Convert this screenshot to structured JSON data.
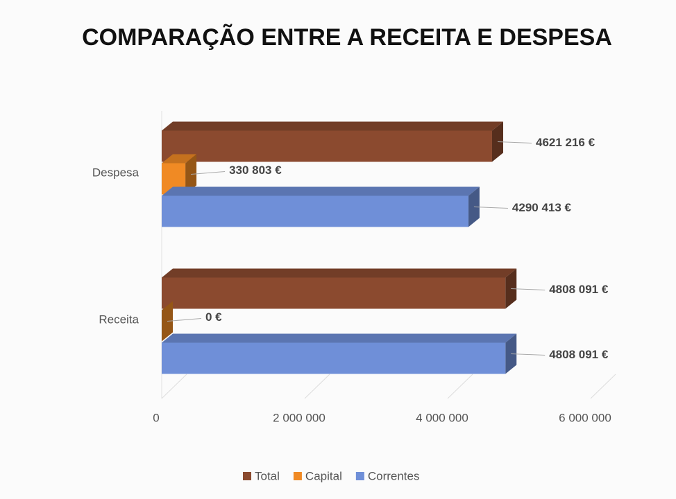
{
  "chart_data": {
    "type": "bar3d",
    "orientation": "horizontal",
    "title": "COMPARAÇÃO ENTRE A RECEITA E DESPESA",
    "categories": [
      "Despesa",
      "Receita"
    ],
    "series": [
      {
        "name": "Total",
        "color": "#8b4a2f",
        "values": [
          4621216,
          4808091
        ],
        "value_labels": [
          "4621 216 €",
          "4808 091 €"
        ]
      },
      {
        "name": "Capital",
        "color": "#f08a24",
        "values": [
          330803,
          0
        ],
        "value_labels": [
          "330 803 €",
          "0 €"
        ]
      },
      {
        "name": "Correntes",
        "color": "#6f8fd8",
        "values": [
          4290413,
          4808091
        ],
        "value_labels": [
          "4290 413 €",
          "4808 091 €"
        ]
      }
    ],
    "xlim": [
      0,
      6000000
    ],
    "xticks": [
      0,
      {
        "value": 2000000,
        "label": "2 000 000"
      },
      {
        "value": 4000000,
        "label": "4 000 000"
      },
      {
        "value": 6000000,
        "label": "6 000 000"
      }
    ],
    "grid": true,
    "legend": "bottom"
  }
}
